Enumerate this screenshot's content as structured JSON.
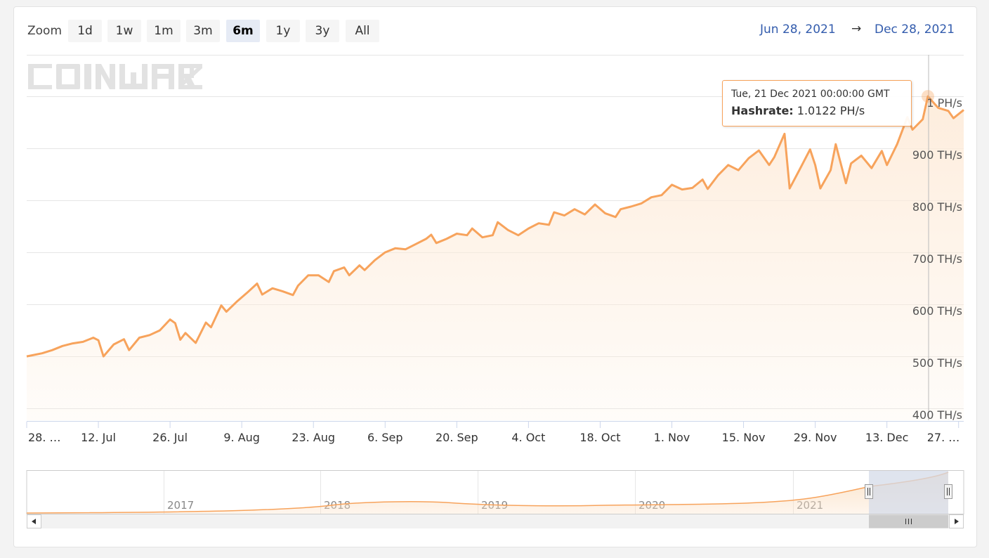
{
  "toolbar": {
    "zoom_label": "Zoom",
    "buttons": [
      "1d",
      "1w",
      "1m",
      "3m",
      "6m",
      "1y",
      "3y",
      "All"
    ],
    "active": "6m"
  },
  "date_range": {
    "from": "Jun 28, 2021",
    "arrow": "→",
    "to": "Dec 28, 2021"
  },
  "watermark": "COINWARZ",
  "tooltip": {
    "date": "Tue, 21 Dec 2021 00:00:00 GMT",
    "series_label": "Hashrate:",
    "value": "1.0122 PH/s"
  },
  "colors": {
    "line": "#f7a35c",
    "fill_top": "#fdebd9",
    "navigator_mask": "#d4dbe8",
    "accent_text": "#335cad"
  },
  "chart_data": {
    "type": "area",
    "ylim": [
      400,
      1000
    ],
    "y_ticks": [
      {
        "v": 400,
        "label": "400 TH/s"
      },
      {
        "v": 500,
        "label": "500 TH/s"
      },
      {
        "v": 600,
        "label": "600 TH/s"
      },
      {
        "v": 700,
        "label": "700 TH/s"
      },
      {
        "v": 800,
        "label": "800 TH/s"
      },
      {
        "v": 900,
        "label": "900 TH/s"
      },
      {
        "v": 1000,
        "label": "1 PH/s"
      }
    ],
    "x_range": [
      "2021-06-28",
      "2021-12-28"
    ],
    "x_ticks": [
      {
        "date": "2021-06-28",
        "label": "28. …"
      },
      {
        "date": "2021-07-12",
        "label": "12. Jul"
      },
      {
        "date": "2021-07-26",
        "label": "26. Jul"
      },
      {
        "date": "2021-08-09",
        "label": "9. Aug"
      },
      {
        "date": "2021-08-23",
        "label": "23. Aug"
      },
      {
        "date": "2021-09-06",
        "label": "6. Sep"
      },
      {
        "date": "2021-09-20",
        "label": "20. Sep"
      },
      {
        "date": "2021-10-04",
        "label": "4. Oct"
      },
      {
        "date": "2021-10-18",
        "label": "18. Oct"
      },
      {
        "date": "2021-11-01",
        "label": "1. Nov"
      },
      {
        "date": "2021-11-15",
        "label": "15. Nov"
      },
      {
        "date": "2021-11-29",
        "label": "29. Nov"
      },
      {
        "date": "2021-12-13",
        "label": "13. Dec"
      },
      {
        "date": "2021-12-27",
        "label": "27. …"
      }
    ],
    "series": [
      {
        "values": [
          [
            "2021-06-28",
            512
          ],
          [
            "2021-07-01",
            518
          ],
          [
            "2021-07-03",
            524
          ],
          [
            "2021-07-05",
            532
          ],
          [
            "2021-07-07",
            537
          ],
          [
            "2021-07-09",
            540
          ],
          [
            "2021-07-11",
            548
          ],
          [
            "2021-07-12",
            543
          ],
          [
            "2021-07-13",
            512
          ],
          [
            "2021-07-15",
            535
          ],
          [
            "2021-07-17",
            545
          ],
          [
            "2021-07-18",
            524
          ],
          [
            "2021-07-20",
            548
          ],
          [
            "2021-07-22",
            553
          ],
          [
            "2021-07-24",
            562
          ],
          [
            "2021-07-26",
            583
          ],
          [
            "2021-07-27",
            576
          ],
          [
            "2021-07-28",
            544
          ],
          [
            "2021-07-29",
            557
          ],
          [
            "2021-07-31",
            538
          ],
          [
            "2021-08-02",
            577
          ],
          [
            "2021-08-03",
            568
          ],
          [
            "2021-08-05",
            610
          ],
          [
            "2021-08-06",
            598
          ],
          [
            "2021-08-08",
            617
          ],
          [
            "2021-08-10",
            634
          ],
          [
            "2021-08-12",
            652
          ],
          [
            "2021-08-13",
            631
          ],
          [
            "2021-08-15",
            643
          ],
          [
            "2021-08-17",
            637
          ],
          [
            "2021-08-19",
            630
          ],
          [
            "2021-08-20",
            648
          ],
          [
            "2021-08-22",
            668
          ],
          [
            "2021-08-24",
            668
          ],
          [
            "2021-08-26",
            655
          ],
          [
            "2021-08-27",
            676
          ],
          [
            "2021-08-29",
            683
          ],
          [
            "2021-08-30",
            668
          ],
          [
            "2021-09-01",
            687
          ],
          [
            "2021-09-02",
            678
          ],
          [
            "2021-09-04",
            697
          ],
          [
            "2021-09-06",
            712
          ],
          [
            "2021-09-08",
            720
          ],
          [
            "2021-09-10",
            718
          ],
          [
            "2021-09-12",
            728
          ],
          [
            "2021-09-14",
            738
          ],
          [
            "2021-09-15",
            746
          ],
          [
            "2021-09-16",
            730
          ],
          [
            "2021-09-18",
            738
          ],
          [
            "2021-09-20",
            748
          ],
          [
            "2021-09-22",
            745
          ],
          [
            "2021-09-23",
            758
          ],
          [
            "2021-09-25",
            741
          ],
          [
            "2021-09-27",
            745
          ],
          [
            "2021-09-28",
            770
          ],
          [
            "2021-09-30",
            755
          ],
          [
            "2021-10-02",
            745
          ],
          [
            "2021-10-04",
            758
          ],
          [
            "2021-10-06",
            768
          ],
          [
            "2021-10-08",
            765
          ],
          [
            "2021-10-09",
            789
          ],
          [
            "2021-10-11",
            783
          ],
          [
            "2021-10-13",
            795
          ],
          [
            "2021-10-15",
            785
          ],
          [
            "2021-10-17",
            804
          ],
          [
            "2021-10-19",
            787
          ],
          [
            "2021-10-21",
            780
          ],
          [
            "2021-10-22",
            795
          ],
          [
            "2021-10-24",
            800
          ],
          [
            "2021-10-26",
            806
          ],
          [
            "2021-10-28",
            818
          ],
          [
            "2021-10-30",
            822
          ],
          [
            "2021-11-01",
            842
          ],
          [
            "2021-11-03",
            833
          ],
          [
            "2021-11-05",
            836
          ],
          [
            "2021-11-07",
            852
          ],
          [
            "2021-11-08",
            834
          ],
          [
            "2021-11-10",
            860
          ],
          [
            "2021-11-12",
            880
          ],
          [
            "2021-11-14",
            870
          ],
          [
            "2021-11-16",
            893
          ],
          [
            "2021-11-18",
            908
          ],
          [
            "2021-11-20",
            880
          ],
          [
            "2021-11-21",
            895
          ],
          [
            "2021-11-23",
            940
          ],
          [
            "2021-11-24",
            835
          ],
          [
            "2021-11-26",
            872
          ],
          [
            "2021-11-28",
            910
          ],
          [
            "2021-11-29",
            880
          ],
          [
            "2021-11-30",
            835
          ],
          [
            "2021-12-02",
            870
          ],
          [
            "2021-12-03",
            920
          ],
          [
            "2021-12-05",
            845
          ],
          [
            "2021-12-06",
            883
          ],
          [
            "2021-12-08",
            898
          ],
          [
            "2021-12-10",
            874
          ],
          [
            "2021-12-12",
            907
          ],
          [
            "2021-12-13",
            880
          ],
          [
            "2021-12-15",
            920
          ],
          [
            "2021-12-17",
            972
          ],
          [
            "2021-12-18",
            948
          ],
          [
            "2021-12-20",
            968
          ],
          [
            "2021-12-21",
            1012
          ],
          [
            "2021-12-23",
            990
          ],
          [
            "2021-12-25",
            984
          ],
          [
            "2021-12-26",
            970
          ],
          [
            "2021-12-28",
            986
          ]
        ]
      }
    ],
    "navigator": {
      "year_labels": [
        "2017",
        "2018",
        "2019",
        "2020",
        "2021"
      ]
    }
  }
}
